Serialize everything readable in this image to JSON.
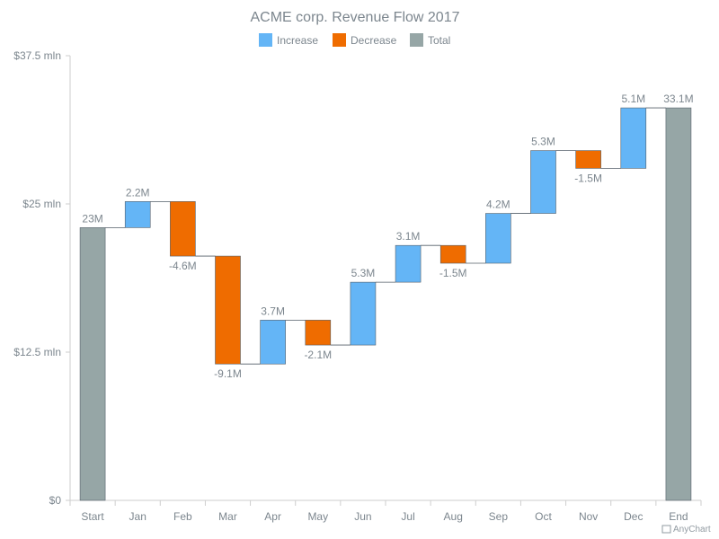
{
  "chart_data": {
    "type": "waterfall",
    "title": "ACME corp. Revenue Flow 2017",
    "legend": [
      {
        "label": "Increase",
        "color": "#64b5f6"
      },
      {
        "label": "Decrease",
        "color": "#ef6c00"
      },
      {
        "label": "Total",
        "color": "#96a6a6"
      }
    ],
    "legend_position": "top-center",
    "y_ticks": [
      "$0",
      "$12.5 mln",
      "$25 mln",
      "$37.5 mln"
    ],
    "y_tick_values": [
      0,
      12.5,
      25,
      37.5
    ],
    "ylim": [
      0,
      37.5
    ],
    "grid": false,
    "categories": [
      "Start",
      "Jan",
      "Feb",
      "Mar",
      "Apr",
      "May",
      "Jun",
      "Jul",
      "Aug",
      "Sep",
      "Oct",
      "Nov",
      "Dec",
      "End"
    ],
    "values": [
      23,
      2.2,
      -4.6,
      -9.1,
      3.7,
      -2.1,
      5.3,
      3.1,
      -1.5,
      4.2,
      5.3,
      -1.5,
      5.1,
      33.1
    ],
    "kinds": [
      "total",
      "increase",
      "decrease",
      "decrease",
      "increase",
      "decrease",
      "increase",
      "increase",
      "decrease",
      "increase",
      "increase",
      "decrease",
      "increase",
      "total"
    ],
    "labels": [
      "23M",
      "2.2M",
      "-4.6M",
      "-9.1M",
      "3.7M",
      "-2.1M",
      "5.3M",
      "3.1M",
      "-1.5M",
      "4.2M",
      "5.3M",
      "-1.5M",
      "5.1M",
      "33.1M"
    ]
  },
  "colors": {
    "increase": "#64b5f6",
    "decrease": "#ef6c00",
    "total": "#96a6a6",
    "axis": "#cecece",
    "connector": "#545f69",
    "text": "#7c868e"
  },
  "credit": "AnyChart"
}
